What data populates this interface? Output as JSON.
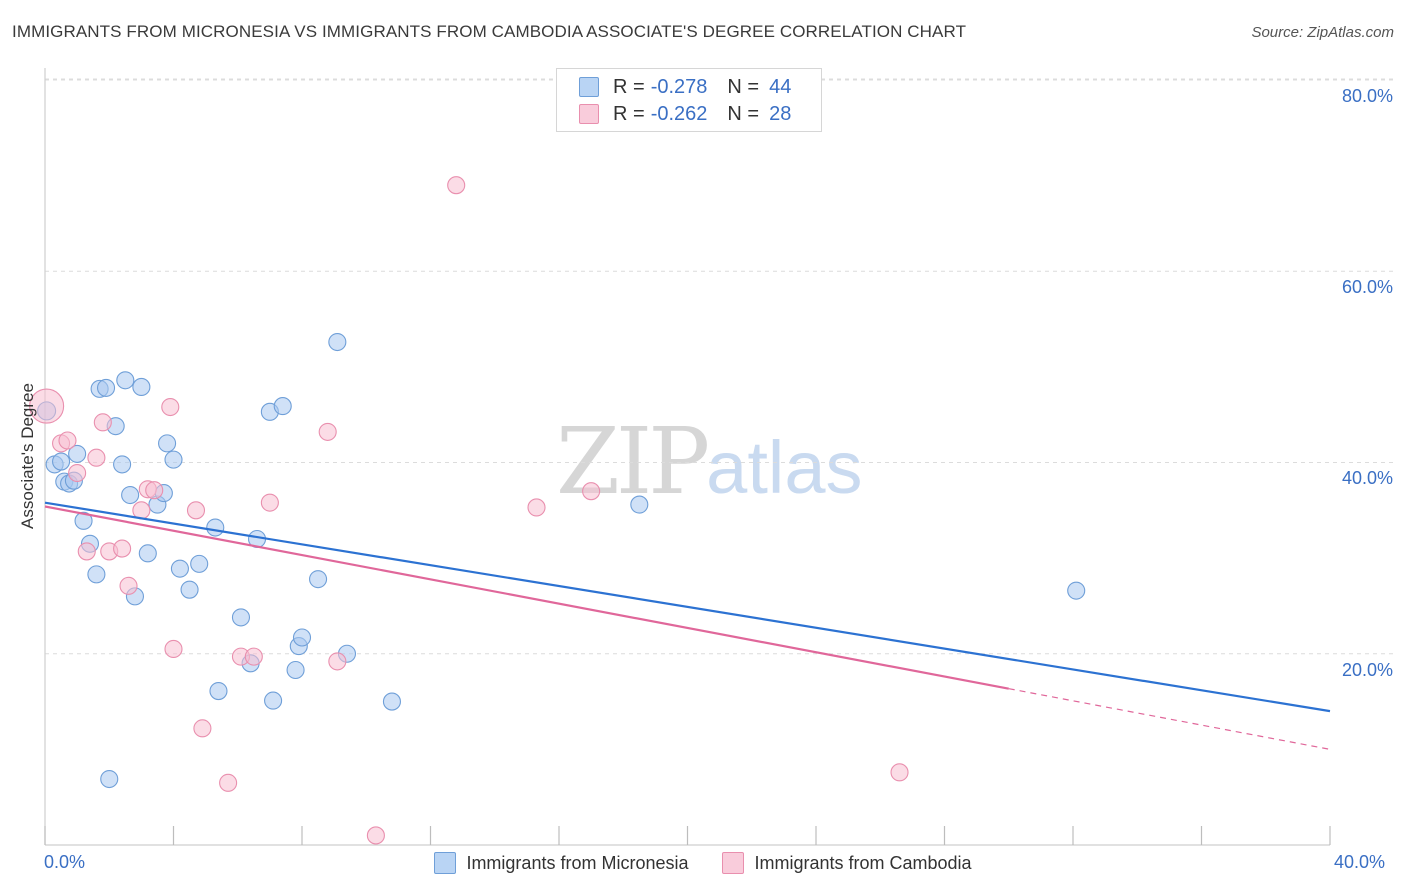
{
  "title": "IMMIGRANTS FROM MICRONESIA VS IMMIGRANTS FROM CAMBODIA ASSOCIATE'S DEGREE CORRELATION CHART",
  "source": "Source: ZipAtlas.com",
  "watermark": {
    "zip": "ZIP",
    "atlas": "atlas"
  },
  "legend_top": {
    "rows": [
      {
        "r_label": "R =",
        "r_value": "-0.278",
        "n_label": "N =",
        "n_value": "44"
      },
      {
        "r_label": "R =",
        "r_value": "-0.262",
        "n_label": "N =",
        "n_value": "28"
      }
    ]
  },
  "colors": {
    "micronesia_fill": "#a9c9f0",
    "micronesia_stroke": "#6f9fd8",
    "micronesia_line": "#2c72d2",
    "cambodia_fill": "#f7bfd1",
    "cambodia_stroke": "#e98fae",
    "cambodia_line": "#e0679a",
    "tick_text": "#3a6fc4",
    "grid": "#dcdcdc"
  },
  "chart_data": {
    "type": "scatter",
    "title": "IMMIGRANTS FROM MICRONESIA VS IMMIGRANTS FROM CAMBODIA ASSOCIATE'S DEGREE CORRELATION CHART",
    "xlabel": "",
    "ylabel": "Associate's Degree",
    "xlim": [
      0,
      40
    ],
    "ylim": [
      0,
      80
    ],
    "x_tick_labels": [
      "0.0%",
      "40.0%"
    ],
    "y_ticks": [
      20,
      40,
      60,
      80
    ],
    "y_tick_labels": [
      "20.0%",
      "40.0%",
      "60.0%",
      "80.0%"
    ],
    "grid": true,
    "legend_position": "bottom",
    "series": [
      {
        "name": "Immigrants from Micronesia",
        "r": -0.278,
        "n": 44,
        "trend": {
          "x": [
            0,
            40
          ],
          "y": [
            35.8,
            14.0
          ],
          "dashed_from": null
        },
        "points": [
          [
            0.05,
            45.4
          ],
          [
            0.3,
            39.8
          ],
          [
            0.5,
            40.1
          ],
          [
            0.6,
            38.0
          ],
          [
            0.75,
            37.8
          ],
          [
            0.9,
            38.1
          ],
          [
            1.0,
            40.9
          ],
          [
            1.2,
            33.9
          ],
          [
            1.4,
            31.5
          ],
          [
            1.6,
            28.3
          ],
          [
            1.7,
            47.7
          ],
          [
            1.9,
            47.8
          ],
          [
            2.0,
            6.9
          ],
          [
            2.2,
            43.8
          ],
          [
            2.4,
            39.8
          ],
          [
            2.5,
            48.6
          ],
          [
            2.65,
            36.6
          ],
          [
            2.8,
            26.0
          ],
          [
            3.0,
            47.9
          ],
          [
            3.2,
            30.5
          ],
          [
            3.5,
            35.6
          ],
          [
            3.7,
            36.8
          ],
          [
            3.8,
            42.0
          ],
          [
            4.0,
            40.3
          ],
          [
            4.2,
            28.9
          ],
          [
            4.5,
            26.7
          ],
          [
            4.8,
            29.4
          ],
          [
            5.3,
            33.2
          ],
          [
            5.4,
            16.1
          ],
          [
            6.1,
            23.8
          ],
          [
            6.4,
            19.0
          ],
          [
            6.6,
            32.0
          ],
          [
            7.0,
            45.3
          ],
          [
            7.1,
            15.1
          ],
          [
            7.4,
            45.9
          ],
          [
            7.8,
            18.3
          ],
          [
            7.9,
            20.8
          ],
          [
            8.0,
            21.7
          ],
          [
            8.5,
            27.8
          ],
          [
            9.1,
            52.6
          ],
          [
            9.4,
            20.0
          ],
          [
            10.8,
            15.0
          ],
          [
            18.5,
            35.6
          ],
          [
            32.1,
            26.6
          ]
        ]
      },
      {
        "name": "Immigrants from Cambodia",
        "r": -0.262,
        "n": 28,
        "trend": {
          "x": [
            0,
            40
          ],
          "y": [
            35.4,
            10.0
          ],
          "dashed_from": 30
        },
        "points": [
          [
            0.05,
            45.9
          ],
          [
            0.5,
            42.0
          ],
          [
            0.7,
            42.3
          ],
          [
            1.0,
            38.9
          ],
          [
            1.3,
            30.7
          ],
          [
            1.6,
            40.5
          ],
          [
            1.8,
            44.2
          ],
          [
            2.0,
            30.7
          ],
          [
            2.4,
            31.0
          ],
          [
            2.6,
            27.1
          ],
          [
            3.0,
            35.0
          ],
          [
            3.2,
            37.2
          ],
          [
            3.4,
            37.1
          ],
          [
            3.9,
            45.8
          ],
          [
            4.0,
            20.5
          ],
          [
            4.7,
            35.0
          ],
          [
            4.9,
            12.2
          ],
          [
            5.7,
            6.5
          ],
          [
            6.1,
            19.7
          ],
          [
            6.5,
            19.7
          ],
          [
            7.0,
            35.8
          ],
          [
            8.8,
            43.2
          ],
          [
            9.1,
            19.2
          ],
          [
            10.3,
            1.0
          ],
          [
            12.8,
            69.0
          ],
          [
            15.3,
            35.3
          ],
          [
            17.0,
            37.0
          ],
          [
            26.6,
            7.6
          ]
        ]
      }
    ]
  },
  "legend_bottom": {
    "items": [
      "Immigrants from Micronesia",
      "Immigrants from Cambodia"
    ]
  }
}
